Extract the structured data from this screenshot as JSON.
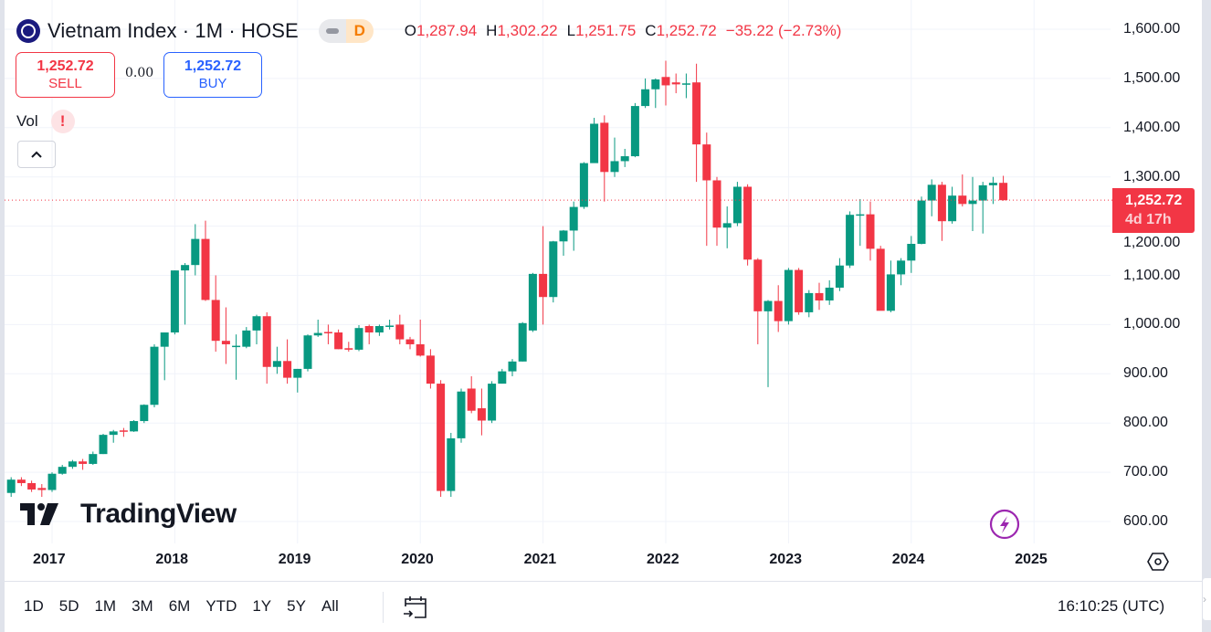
{
  "header": {
    "symbol_title": "Vietnam Index · 1M · HOSE",
    "status_badge": "D",
    "ohlc": {
      "o_key": "O",
      "o": "1,287.94",
      "h_key": "H",
      "h": "1,302.22",
      "l_key": "L",
      "l": "1,251.75",
      "c_key": "C",
      "c": "1,252.72",
      "change": "−35.22 (−2.73%)"
    }
  },
  "trade": {
    "sell_price": "1,252.72",
    "sell_label": "SELL",
    "spread": "0.00",
    "buy_price": "1,252.72",
    "buy_label": "BUY"
  },
  "indicator": {
    "vol_label": "Vol",
    "warning": "!",
    "collapse": "^"
  },
  "watermark": {
    "brand": "TradingView"
  },
  "price_label": {
    "value": "1,252.72",
    "countdown": "4d 17h"
  },
  "bottom": {
    "ranges": [
      "1D",
      "5D",
      "1M",
      "3M",
      "6M",
      "YTD",
      "1Y",
      "5Y",
      "All"
    ],
    "clock": "16:10:25 (UTC)"
  },
  "colors": {
    "up": "#089981",
    "down": "#f23645",
    "grid": "#f0f3fa",
    "last_price": "#f23645"
  },
  "chart_data": {
    "type": "candlestick",
    "title": "Vietnam Index · 1M · HOSE",
    "ylim": [
      600,
      1600
    ],
    "y_ticks": [
      "600.00",
      "700.00",
      "800.00",
      "900.00",
      "1,000.00",
      "1,100.00",
      "1,200.00",
      "1,300.00",
      "1,400.00",
      "1,500.00",
      "1,600.00"
    ],
    "y_tick_values": [
      600,
      700,
      800,
      900,
      1000,
      1100,
      1200,
      1300,
      1400,
      1500,
      1600
    ],
    "x_ticks": [
      "2017",
      "2018",
      "2019",
      "2020",
      "2021",
      "2022",
      "2023",
      "2024",
      "2025"
    ],
    "x_tick_month_index": [
      4,
      16,
      28,
      40,
      52,
      64,
      76,
      88,
      100
    ],
    "grid": true,
    "last_price": 1252.72,
    "start_month": "2016-09",
    "candles": [
      [
        658,
        690,
        650,
        685
      ],
      [
        685,
        690,
        672,
        678
      ],
      [
        678,
        683,
        660,
        665
      ],
      [
        668,
        676,
        650,
        664
      ],
      [
        664,
        700,
        660,
        697
      ],
      [
        697,
        715,
        695,
        711
      ],
      [
        711,
        725,
        707,
        722
      ],
      [
        722,
        727,
        705,
        717
      ],
      [
        717,
        742,
        715,
        737
      ],
      [
        737,
        778,
        737,
        776
      ],
      [
        776,
        786,
        760,
        783
      ],
      [
        785,
        790,
        772,
        783
      ],
      [
        783,
        806,
        782,
        804
      ],
      [
        804,
        838,
        800,
        837
      ],
      [
        837,
        960,
        832,
        955
      ],
      [
        955,
        984,
        887,
        984
      ],
      [
        984,
        1110,
        980,
        1110
      ],
      [
        1110,
        1125,
        1000,
        1121
      ],
      [
        1121,
        1204,
        1100,
        1174
      ],
      [
        1174,
        1211,
        1048,
        1050
      ],
      [
        1050,
        1100,
        945,
        967
      ],
      [
        967,
        1035,
        920,
        960
      ],
      [
        955,
        980,
        888,
        957
      ],
      [
        955,
        995,
        952,
        988
      ],
      [
        988,
        1020,
        960,
        1017
      ],
      [
        1017,
        1025,
        880,
        914
      ],
      [
        914,
        955,
        900,
        926
      ],
      [
        926,
        970,
        880,
        892
      ],
      [
        892,
        910,
        862,
        910
      ],
      [
        910,
        980,
        905,
        978
      ],
      [
        978,
        1010,
        975,
        983
      ],
      [
        985,
        1000,
        960,
        984
      ],
      [
        984,
        990,
        950,
        950
      ],
      [
        952,
        965,
        945,
        949
      ],
      [
        949,
        999,
        946,
        993
      ],
      [
        997,
        1000,
        960,
        984
      ],
      [
        984,
        1000,
        977,
        997
      ],
      [
        996,
        1010,
        990,
        998
      ],
      [
        1000,
        1020,
        960,
        970
      ],
      [
        970,
        975,
        950,
        960
      ],
      [
        960,
        1010,
        935,
        937
      ],
      [
        937,
        950,
        870,
        880
      ],
      [
        880,
        887,
        650,
        662
      ],
      [
        662,
        780,
        650,
        769
      ],
      [
        769,
        870,
        760,
        864
      ],
      [
        870,
        895,
        820,
        825
      ],
      [
        830,
        870,
        775,
        805
      ],
      [
        805,
        885,
        800,
        880
      ],
      [
        880,
        910,
        880,
        905
      ],
      [
        905,
        930,
        895,
        925
      ],
      [
        925,
        1005,
        925,
        1003
      ],
      [
        988,
        1105,
        985,
        1103
      ],
      [
        1103,
        1200,
        1000,
        1056
      ],
      [
        1056,
        1170,
        1045,
        1169
      ],
      [
        1169,
        1192,
        1140,
        1191
      ],
      [
        1191,
        1250,
        1150,
        1239
      ],
      [
        1239,
        1330,
        1235,
        1328
      ],
      [
        1328,
        1420,
        1330,
        1408
      ],
      [
        1410,
        1425,
        1250,
        1310
      ],
      [
        1310,
        1380,
        1300,
        1332
      ],
      [
        1332,
        1357,
        1320,
        1342
      ],
      [
        1342,
        1450,
        1340,
        1444
      ],
      [
        1444,
        1500,
        1440,
        1478
      ],
      [
        1478,
        1500,
        1440,
        1498
      ],
      [
        1503,
        1536,
        1445,
        1486
      ],
      [
        1492,
        1510,
        1470,
        1488
      ],
      [
        1488,
        1510,
        1460,
        1490
      ],
      [
        1492,
        1530,
        1290,
        1366
      ],
      [
        1366,
        1390,
        1160,
        1293
      ],
      [
        1293,
        1300,
        1160,
        1197
      ],
      [
        1197,
        1240,
        1155,
        1206
      ],
      [
        1206,
        1290,
        1200,
        1280
      ],
      [
        1280,
        1285,
        1120,
        1132
      ],
      [
        1132,
        1135,
        960,
        1027
      ],
      [
        1027,
        1050,
        873,
        1048
      ],
      [
        1048,
        1080,
        985,
        1007
      ],
      [
        1007,
        1115,
        1000,
        1111
      ],
      [
        1111,
        1115,
        1020,
        1025
      ],
      [
        1025,
        1070,
        1015,
        1064
      ],
      [
        1064,
        1085,
        1030,
        1049
      ],
      [
        1049,
        1090,
        1040,
        1075
      ],
      [
        1075,
        1135,
        1068,
        1120
      ],
      [
        1120,
        1230,
        1115,
        1223
      ],
      [
        1223,
        1255,
        1160,
        1224
      ],
      [
        1224,
        1250,
        1130,
        1154
      ],
      [
        1154,
        1160,
        1035,
        1028
      ],
      [
        1028,
        1130,
        1025,
        1102
      ],
      [
        1102,
        1135,
        1080,
        1130
      ],
      [
        1130,
        1180,
        1105,
        1164
      ],
      [
        1164,
        1260,
        1163,
        1252
      ],
      [
        1252,
        1295,
        1220,
        1284
      ],
      [
        1284,
        1290,
        1170,
        1210
      ],
      [
        1210,
        1280,
        1205,
        1262
      ],
      [
        1262,
        1305,
        1240,
        1245
      ],
      [
        1245,
        1300,
        1190,
        1252
      ],
      [
        1252,
        1290,
        1185,
        1283
      ],
      [
        1283,
        1300,
        1245,
        1288
      ],
      [
        1287.94,
        1302.22,
        1251.75,
        1252.72
      ]
    ]
  }
}
